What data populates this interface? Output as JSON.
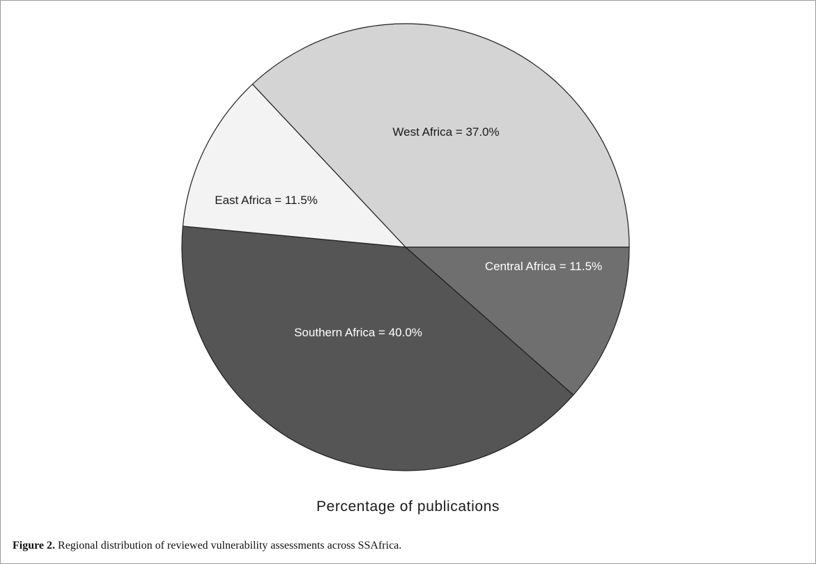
{
  "chart_data": {
    "type": "pie",
    "xlabel": "Percentage of publications",
    "slices": [
      {
        "label": "West Africa = 37.0%",
        "name": "West Africa",
        "value": 37.0,
        "color": "#d4d4d4"
      },
      {
        "label": "Central Africa = 11.5%",
        "name": "Central Africa",
        "value": 11.5,
        "color": "#6f6f6f"
      },
      {
        "label": "Southern Africa = 40.0%",
        "name": "Southern Africa",
        "value": 40.0,
        "color": "#555555"
      },
      {
        "label": "East Africa = 11.5%",
        "name": "East Africa",
        "value": 11.5,
        "color": "#f3f3f3"
      }
    ],
    "start": "3 o'clock",
    "direction": "counterclockwise for West Africa, clockwise order shown"
  },
  "caption": {
    "lead": "Figure 2.",
    "text": " Regional distribution of reviewed vulnerability assessments across SSAfrica."
  }
}
